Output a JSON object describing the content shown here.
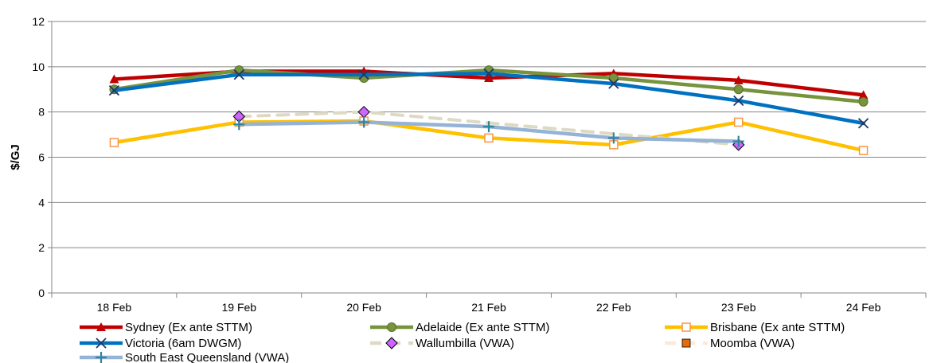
{
  "chart_data": {
    "type": "line",
    "title": "",
    "xlabel": "",
    "ylabel": "$/GJ",
    "ylim": [
      0,
      12
    ],
    "yticks": [
      0,
      2,
      4,
      6,
      8,
      10,
      12
    ],
    "grid": true,
    "legend_position": "bottom",
    "categories": [
      "18 Feb",
      "19 Feb",
      "20 Feb",
      "21 Feb",
      "22 Feb",
      "23 Feb",
      "24 Feb"
    ],
    "series": [
      {
        "name": "Sydney (Ex ante STTM)",
        "color": "#c00000",
        "marker": "triangle",
        "dashed": false,
        "values": [
          9.45,
          9.8,
          9.8,
          9.5,
          9.7,
          9.4,
          8.75
        ]
      },
      {
        "name": "Adelaide (Ex ante STTM)",
        "color": "#77933c",
        "marker": "circle",
        "dashed": false,
        "values": [
          9.0,
          9.85,
          9.5,
          9.85,
          9.5,
          9.0,
          8.45
        ]
      },
      {
        "name": "Brisbane (Ex ante STTM)",
        "color": "#ffc000",
        "marker": "square-open",
        "dashed": false,
        "values": [
          6.65,
          7.55,
          7.6,
          6.85,
          6.55,
          7.55,
          6.3
        ]
      },
      {
        "name": "Victoria (6am DWGM)",
        "color": "#0070c0",
        "marker": "x",
        "dashed": false,
        "values": [
          8.95,
          9.65,
          9.65,
          9.7,
          9.25,
          8.5,
          7.5
        ]
      },
      {
        "name": "Wallumbilla (VWA)",
        "color": "#ddd9c3",
        "marker": "diamond",
        "marker_color": "#cc66ff",
        "dashed": true,
        "values": [
          null,
          7.8,
          8.0,
          null,
          null,
          6.55,
          null
        ]
      },
      {
        "name": "Moomba (VWA)",
        "color": "#fde9d9",
        "marker": "square",
        "marker_color": "#e46c0a",
        "dashed": true,
        "values": [
          null,
          null,
          null,
          null,
          null,
          null,
          null
        ]
      },
      {
        "name": "South East Queensland (VWA)",
        "color": "#95b3d7",
        "marker": "plus",
        "marker_color": "#31859c",
        "dashed": false,
        "values": [
          null,
          7.45,
          7.55,
          7.35,
          6.85,
          6.7,
          null
        ]
      }
    ]
  }
}
